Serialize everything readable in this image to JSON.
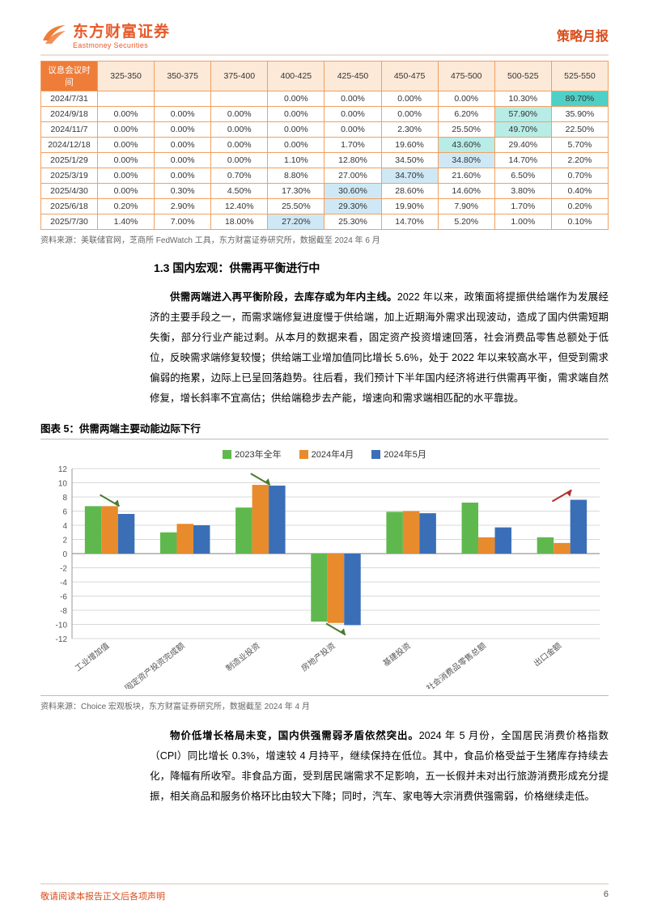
{
  "header": {
    "logo_cn": "东方财富证券",
    "logo_en": "Eastmoney Securities",
    "right": "策略月报"
  },
  "rate_table": {
    "header_col0": "议息会议时间",
    "cols": [
      "325-350",
      "350-375",
      "375-400",
      "400-425",
      "425-450",
      "450-475",
      "475-500",
      "500-525",
      "525-550"
    ],
    "rows": [
      {
        "d": "2024/7/31",
        "v": [
          "",
          "",
          "",
          "0.00%",
          "0.00%",
          "0.00%",
          "0.00%",
          "10.30%",
          "89.70%"
        ],
        "hl": {
          "8": "teal"
        }
      },
      {
        "d": "2024/9/18",
        "v": [
          "0.00%",
          "0.00%",
          "0.00%",
          "0.00%",
          "0.00%",
          "0.00%",
          "6.20%",
          "57.90%",
          "35.90%"
        ],
        "hl": {
          "7": "lteal"
        }
      },
      {
        "d": "2024/11/7",
        "v": [
          "0.00%",
          "0.00%",
          "0.00%",
          "0.00%",
          "0.00%",
          "2.30%",
          "25.50%",
          "49.70%",
          "22.50%"
        ],
        "hl": {
          "7": "lteal"
        }
      },
      {
        "d": "2024/12/18",
        "v": [
          "0.00%",
          "0.00%",
          "0.00%",
          "0.00%",
          "1.70%",
          "19.60%",
          "43.60%",
          "29.40%",
          "5.70%"
        ],
        "hl": {
          "6": "lteal"
        }
      },
      {
        "d": "2025/1/29",
        "v": [
          "0.00%",
          "0.00%",
          "0.00%",
          "1.10%",
          "12.80%",
          "34.50%",
          "34.80%",
          "14.70%",
          "2.20%"
        ],
        "hl": {
          "6": "lblue"
        }
      },
      {
        "d": "2025/3/19",
        "v": [
          "0.00%",
          "0.00%",
          "0.70%",
          "8.80%",
          "27.00%",
          "34.70%",
          "21.60%",
          "6.50%",
          "0.70%"
        ],
        "hl": {
          "5": "lblue"
        }
      },
      {
        "d": "2025/4/30",
        "v": [
          "0.00%",
          "0.30%",
          "4.50%",
          "17.30%",
          "30.60%",
          "28.60%",
          "14.60%",
          "3.80%",
          "0.40%"
        ],
        "hl": {
          "4": "lblue"
        }
      },
      {
        "d": "2025/6/18",
        "v": [
          "0.20%",
          "2.90%",
          "12.40%",
          "25.50%",
          "29.30%",
          "19.90%",
          "7.90%",
          "1.70%",
          "0.20%"
        ],
        "hl": {
          "4": "lblue"
        }
      },
      {
        "d": "2025/7/30",
        "v": [
          "1.40%",
          "7.00%",
          "18.00%",
          "27.20%",
          "25.30%",
          "14.70%",
          "5.20%",
          "1.00%",
          "0.10%"
        ],
        "hl": {
          "3": "lblue"
        }
      }
    ]
  },
  "table_source": "资料来源：美联储官网，芝商所 FedWatch 工具，东方财富证券研究所，数据截至 2024 年 6 月",
  "section_1_3": "1.3 国内宏观：供需再平衡进行中",
  "para1_lead": "供需两端进入再平衡阶段，去库存或为年内主线。",
  "para1_rest": "2022 年以来，政策面将提振供给端作为发展经济的主要手段之一，而需求端修复进度慢于供给端，加上近期海外需求出现波动，造成了国内供需短期失衡，部分行业产能过剩。从本月的数据来看，固定资产投资增速回落，社会消费品零售总额处于低位，反映需求端修复较慢；供给端工业增加值同比增长 5.6%，处于 2022 年以来较高水平，但受到需求偏弱的拖累，边际上已呈回落趋势。往后看，我们预计下半年国内经济将进行供需再平衡，需求端自然修复，增长斜率不宜高估；供给端稳步去产能，增速向和需求端相匹配的水平靠拢。",
  "fig5_title": "图表 5：供需两端主要动能边际下行",
  "chart5": {
    "type": "bar",
    "legend": [
      {
        "label": "2023年全年",
        "color": "#5fb84e"
      },
      {
        "label": "2024年4月",
        "color": "#e88b2c"
      },
      {
        "label": "2024年5月",
        "color": "#3a6fb7"
      }
    ],
    "categories": [
      "工业增加值",
      "固定资产投资完成额",
      "制造业投资",
      "房地产投资",
      "基建投资",
      "社会消费品零售总额",
      "出口金额"
    ],
    "series": [
      [
        6.7,
        3.0,
        6.5,
        -9.6,
        5.9,
        7.2,
        2.3
      ],
      [
        6.7,
        4.2,
        9.7,
        -9.8,
        6.0,
        2.3,
        1.5
      ],
      [
        5.6,
        4.0,
        9.6,
        -10.1,
        5.7,
        3.7,
        7.6
      ]
    ],
    "ylim": [
      -12,
      12
    ],
    "ytick_step": 2,
    "background_color": "#ffffff",
    "grid_color": "#d8d8d8",
    "bar_width": 0.22,
    "arrows": [
      {
        "group": 0,
        "dir": "down",
        "color": "#4a7a2f"
      },
      {
        "group": 2,
        "dir": "down",
        "color": "#4a7a2f"
      },
      {
        "group": 3,
        "dir": "down",
        "color": "#4a7a2f"
      },
      {
        "group": 6,
        "dir": "up",
        "color": "#b03030"
      }
    ]
  },
  "fig5_source": "资料来源：Choice 宏观板块，东方财富证券研究所，数据截至 2024 年 4 月",
  "para2_lead": "物价低增长格局未变，国内供强需弱矛盾依然突出。",
  "para2_rest": "2024 年 5 月份，全国居民消费价格指数（CPI）同比增长 0.3%，增速较 4 月持平，继续保持在低位。其中，食品价格受益于生猪库存持续去化，降幅有所收窄。非食品方面，受到居民端需求不足影响，五一长假并未对出行旅游消费形成充分提振，相关商品和服务价格环比由较大下降；同时，汽车、家电等大宗消费供强需弱，价格继续走低。",
  "footer": {
    "left": "敬请阅读本报告正文后各项声明",
    "page": "6"
  },
  "colors": {
    "brand": "#e85a2a",
    "table_border": "#f0a060",
    "th_bg": "#fce9d8",
    "grid": "#d8d8d8"
  }
}
